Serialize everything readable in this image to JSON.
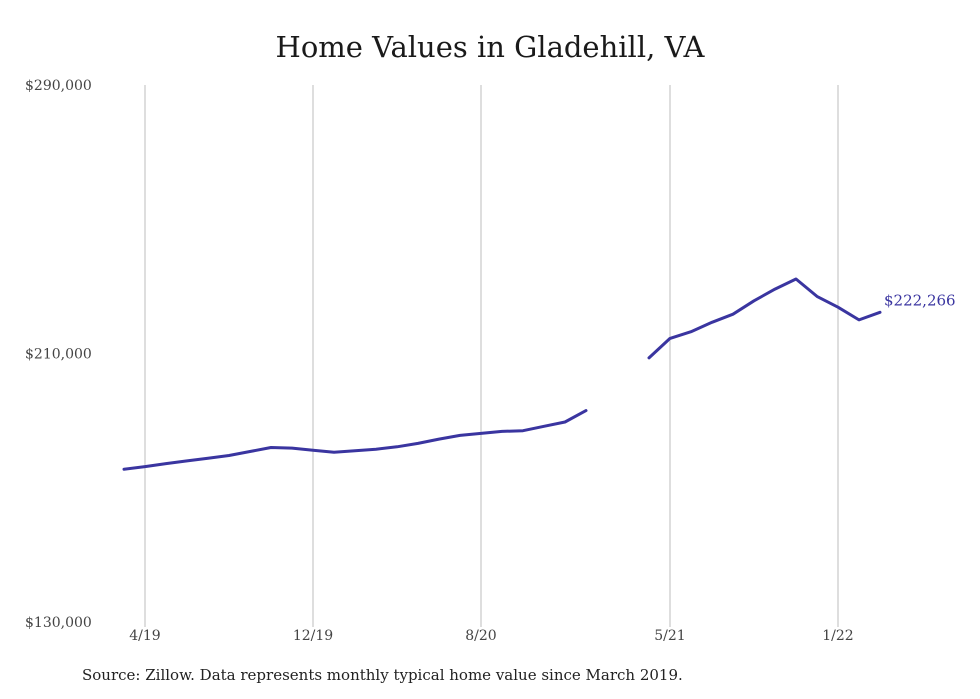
{
  "title": "Home Values in Gladehill, VA",
  "source": "Source: Zillow. Data represents monthly typical home value since March 2019.",
  "colors": {
    "line": "#3a35a0",
    "grid": "#bdbdbd"
  },
  "chart_data": {
    "type": "line",
    "title": "Home Values in Gladehill, VA",
    "xlabel": "",
    "ylabel": "",
    "ylim": [
      130000,
      290000
    ],
    "yticks": [
      "$290,000",
      "$210,000",
      "$130,000"
    ],
    "ytick_values": [
      290000,
      210000,
      130000
    ],
    "xticks": [
      {
        "label": "4/19",
        "date": "2019-04"
      },
      {
        "label": "12/19",
        "date": "2019-12"
      },
      {
        "label": "8/20",
        "date": "2020-08"
      },
      {
        "label": "5/21",
        "date": "2021-05"
      },
      {
        "label": "1/22",
        "date": "2022-01"
      }
    ],
    "grid": "vertical",
    "last_value_label": "$222,266",
    "series": [
      {
        "segments": [
          [
            {
              "date": "2019-03",
              "value": 175500
            },
            {
              "date": "2019-04",
              "value": 176300
            },
            {
              "date": "2019-05",
              "value": 177200
            },
            {
              "date": "2019-06",
              "value": 178000
            },
            {
              "date": "2019-07",
              "value": 178800
            },
            {
              "date": "2019-08",
              "value": 179600
            },
            {
              "date": "2019-09",
              "value": 180800
            },
            {
              "date": "2019-10",
              "value": 182000
            },
            {
              "date": "2019-11",
              "value": 181800
            },
            {
              "date": "2019-12",
              "value": 181200
            },
            {
              "date": "2020-01",
              "value": 180600
            },
            {
              "date": "2020-02",
              "value": 181000
            },
            {
              "date": "2020-03",
              "value": 181500
            },
            {
              "date": "2020-04",
              "value": 182200
            },
            {
              "date": "2020-05",
              "value": 183200
            },
            {
              "date": "2020-06",
              "value": 184500
            },
            {
              "date": "2020-07",
              "value": 185600
            },
            {
              "date": "2020-08",
              "value": 186200
            },
            {
              "date": "2020-09",
              "value": 186800
            },
            {
              "date": "2020-10",
              "value": 187000
            },
            {
              "date": "2020-11",
              "value": 188300
            },
            {
              "date": "2020-12",
              "value": 189600
            },
            {
              "date": "2021-01",
              "value": 193000
            }
          ],
          [
            {
              "date": "2021-04",
              "value": 208700
            },
            {
              "date": "2021-05",
              "value": 214500
            },
            {
              "date": "2021-06",
              "value": 216500
            },
            {
              "date": "2021-07",
              "value": 219300
            },
            {
              "date": "2021-08",
              "value": 221700
            },
            {
              "date": "2021-09",
              "value": 225700
            },
            {
              "date": "2021-10",
              "value": 229200
            },
            {
              "date": "2021-11",
              "value": 232200
            },
            {
              "date": "2021-12",
              "value": 227000
            },
            {
              "date": "2022-01",
              "value": 223800
            },
            {
              "date": "2022-02",
              "value": 220000
            },
            {
              "date": "2022-03",
              "value": 222266
            }
          ]
        ]
      }
    ]
  }
}
